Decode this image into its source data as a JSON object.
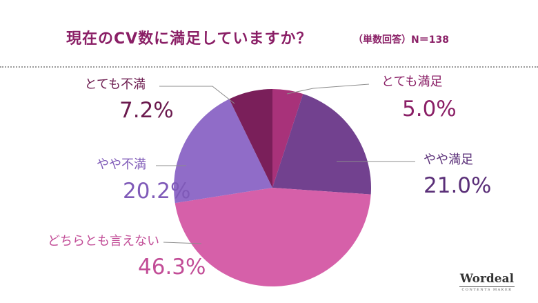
{
  "header": {
    "title": "現在のCV数に満足していますか？",
    "sample_size": "（単数回答）N＝138"
  },
  "logo": {
    "name": "Wordeal",
    "tagline": "CONTENTS MAKER"
  },
  "chart_data": {
    "type": "pie",
    "title": "現在のCV数に満足していますか？",
    "slices": [
      {
        "label": "とても満足",
        "value": 5.0,
        "display": "5.0%",
        "color": "#a8327a",
        "label_color": "#8a1f66"
      },
      {
        "label": "やや満足",
        "value": 21.0,
        "display": "21.0%",
        "color": "#72418f",
        "label_color": "#5a2f78"
      },
      {
        "label": "どちらとも言えない",
        "value": 46.3,
        "display": "46.3%",
        "color": "#d660a9",
        "label_color": "#c24d97"
      },
      {
        "label": "やや不満",
        "value": 20.2,
        "display": "20.2%",
        "color": "#906cc8",
        "label_color": "#7f5ab8"
      },
      {
        "label": "とても不満",
        "value": 7.2,
        "display": "7.2%",
        "color": "#7a1f5a",
        "label_color": "#6b1a4e"
      }
    ],
    "start_angle": "12 o'clock",
    "direction": "clockwise",
    "legend": "none"
  }
}
